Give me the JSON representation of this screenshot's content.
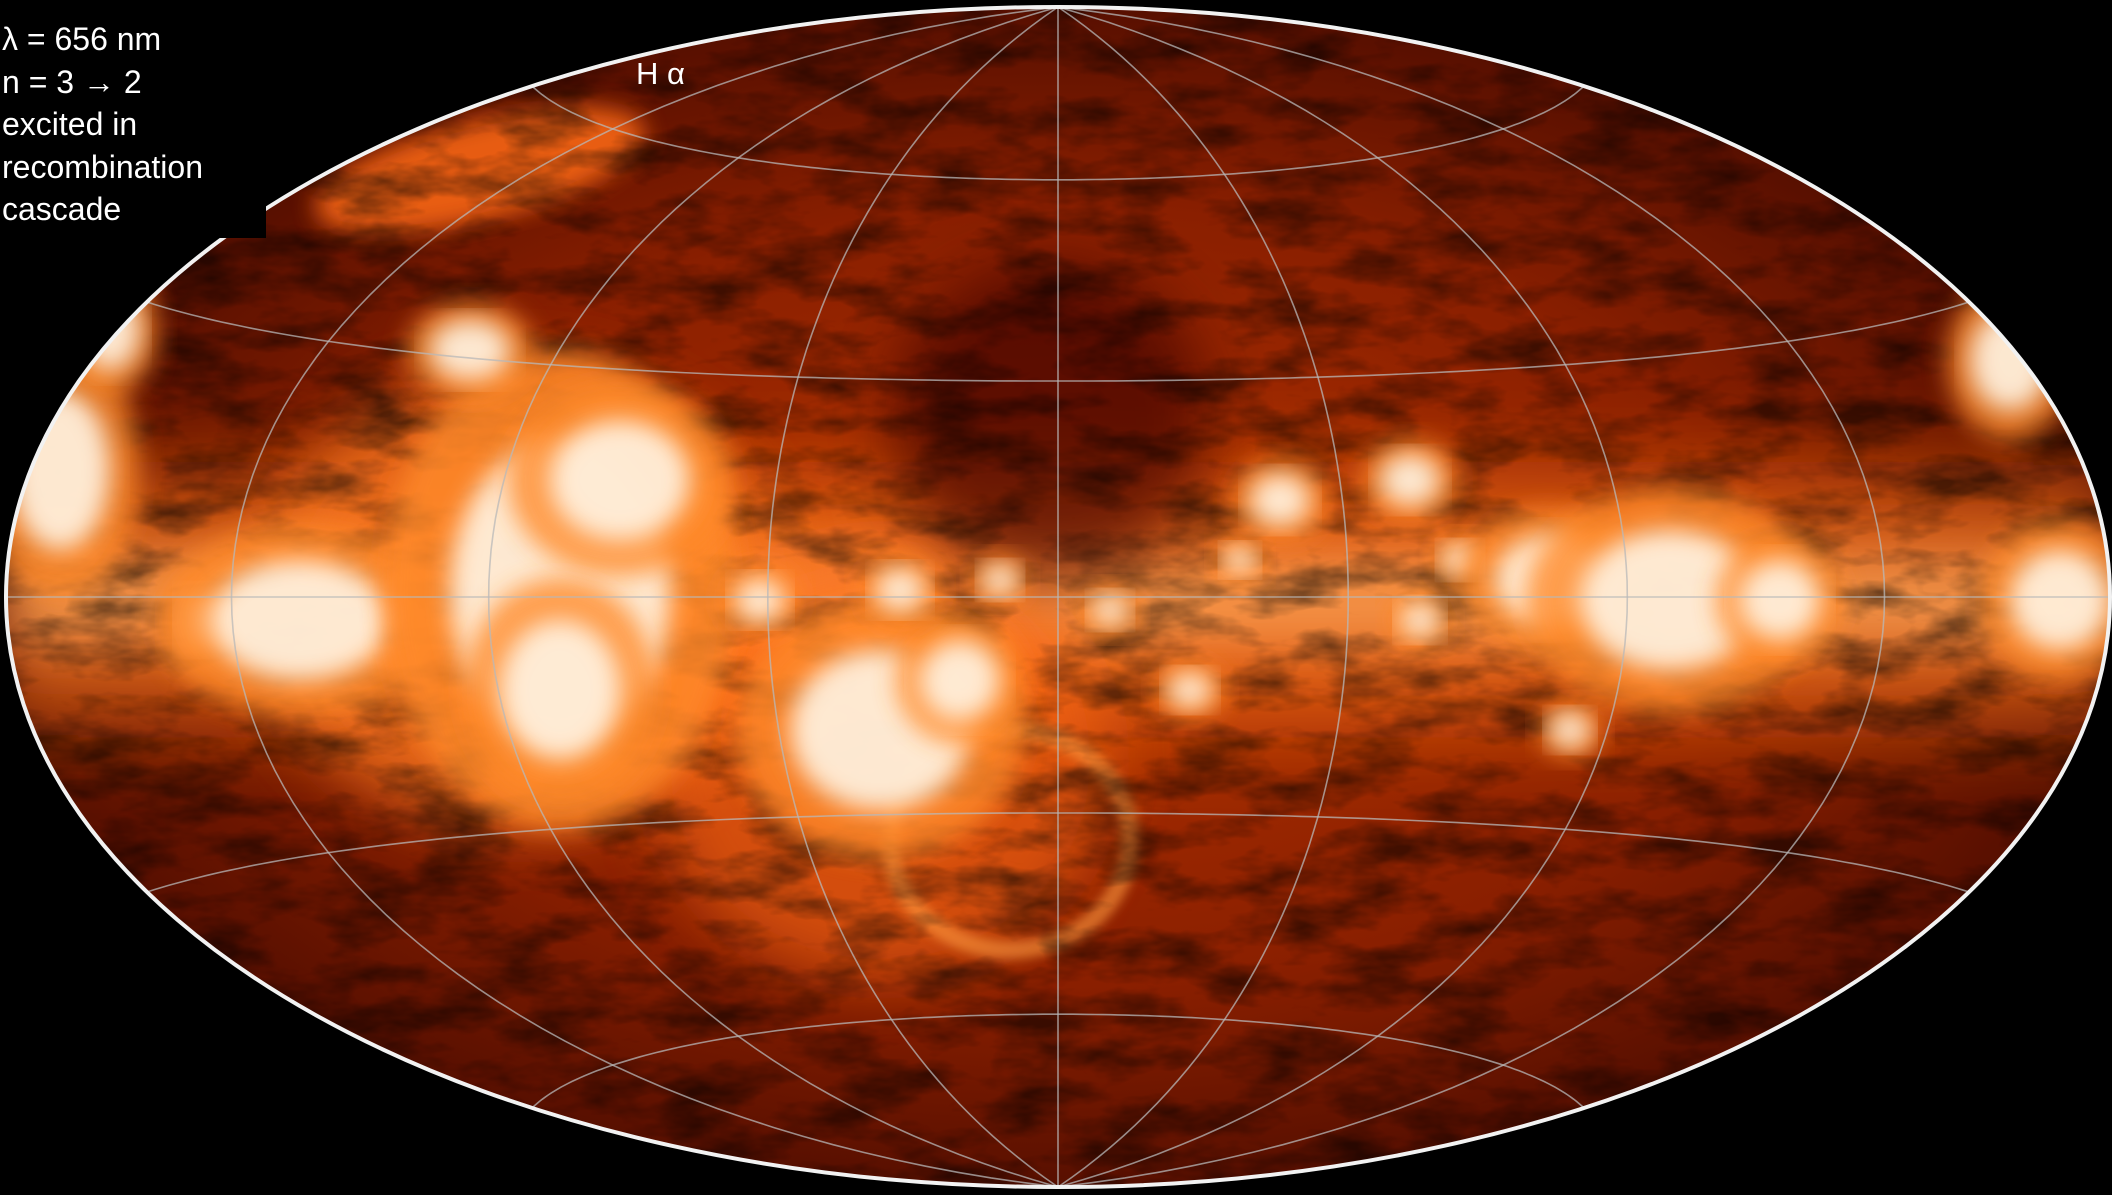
{
  "caption": {
    "lines": [
      "λ = 656 nm",
      "n = 3 → 2",
      "excited in",
      "recombination",
      "cascade"
    ]
  },
  "map_label": "H α",
  "colors": {
    "background": "#000000",
    "emission_dim": "#3a0500",
    "emission_mid": "#c83a00",
    "emission_bright": "#ff9a3c",
    "emission_peak": "#ffffff",
    "graticule": "#b8b8b8",
    "outline": "#f2f2f2"
  }
}
